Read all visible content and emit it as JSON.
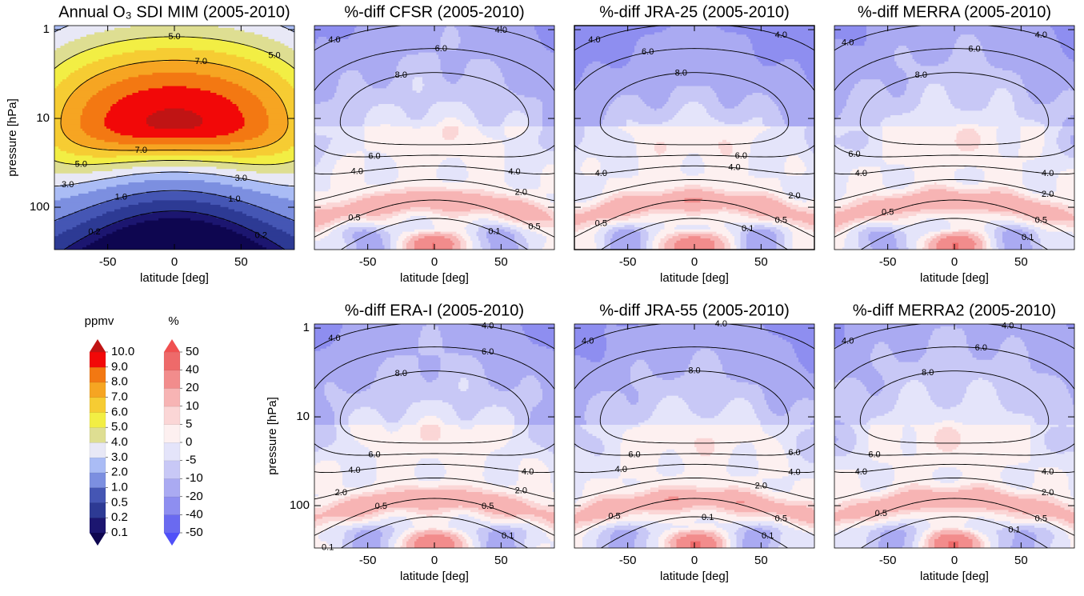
{
  "chart_data": [
    {
      "type": "contour",
      "field": "ozone",
      "title": "Annual O₃ SDI MIM (2005-2010)",
      "xlabel": "latitude [deg]",
      "ylabel": "pressure [hPa]",
      "xlim": [
        -90,
        90
      ],
      "xticks": [
        -50,
        0,
        50
      ],
      "ylim": [
        300,
        0.9
      ],
      "log_y": true,
      "yticks": [
        1,
        10,
        100
      ],
      "contour_labels": [
        {
          "value": 5,
          "label": "5.0"
        },
        {
          "value": 7,
          "label": "7.0"
        },
        {
          "value": 5,
          "label": "5.0"
        },
        {
          "value": 5,
          "label": "5.0"
        },
        {
          "value": 7,
          "label": "7.0"
        },
        {
          "value": 3,
          "label": "3.0"
        },
        {
          "value": 3,
          "label": "3.0"
        },
        {
          "value": 1,
          "label": "1.0"
        },
        {
          "value": 1,
          "label": "1.0"
        },
        {
          "value": 0.2,
          "label": "0.2"
        },
        {
          "value": 0.2,
          "label": "0.2"
        }
      ]
    },
    {
      "type": "contour",
      "field": "percent-diff",
      "title": "%-diff CFSR (2005-2010)",
      "xlabel": "latitude [deg]",
      "xlim": [
        -90,
        90
      ],
      "xticks": [
        -50,
        0,
        50
      ],
      "ylim": [
        300,
        0.9
      ],
      "log_y": true,
      "yticks": [
        1,
        10,
        100
      ],
      "contour_labels": [
        {
          "value": 4,
          "label": "4.0"
        },
        {
          "value": 4,
          "label": "4.0"
        },
        {
          "value": 6,
          "label": "6.0"
        },
        {
          "value": 8,
          "label": "8.0"
        },
        {
          "value": 6,
          "label": "6.0"
        },
        {
          "value": 4,
          "label": "4.0"
        },
        {
          "value": 4,
          "label": "4.0"
        },
        {
          "value": 2,
          "label": "2.0"
        },
        {
          "value": 0.5,
          "label": "0.5"
        },
        {
          "value": 0.5,
          "label": "0.5"
        },
        {
          "value": 0.1,
          "label": "0.1"
        }
      ]
    },
    {
      "type": "contour",
      "field": "percent-diff",
      "title": "%-diff JRA-25 (2005-2010)",
      "xlabel": "latitude [deg]",
      "xlim": [
        -90,
        90
      ],
      "xticks": [
        -50,
        0,
        50
      ],
      "ylim": [
        300,
        0.9
      ],
      "log_y": true,
      "yticks": [
        1,
        10,
        100
      ],
      "contour_labels": [
        {
          "value": 4,
          "label": "4.0"
        },
        {
          "value": 4,
          "label": "4.0"
        },
        {
          "value": 6,
          "label": "6.0"
        },
        {
          "value": 8,
          "label": "8.0"
        },
        {
          "value": 6,
          "label": "6.0"
        },
        {
          "value": 4,
          "label": "4.0"
        },
        {
          "value": 4,
          "label": "4.0"
        },
        {
          "value": 2,
          "label": "2.0"
        },
        {
          "value": 0.5,
          "label": "0.5"
        },
        {
          "value": 0.5,
          "label": "0.5"
        },
        {
          "value": 0.1,
          "label": "0.1"
        }
      ]
    },
    {
      "type": "contour",
      "field": "percent-diff",
      "title": "%-diff MERRA (2005-2010)",
      "xlabel": "latitude [deg]",
      "xlim": [
        -90,
        90
      ],
      "xticks": [
        -50,
        0,
        50
      ],
      "ylim": [
        300,
        0.9
      ],
      "log_y": true,
      "yticks": [
        1,
        10,
        100
      ],
      "contour_labels": [
        {
          "value": 4,
          "label": "4.0"
        },
        {
          "value": 4,
          "label": "4.0"
        },
        {
          "value": 6,
          "label": "6.0"
        },
        {
          "value": 8,
          "label": "8.0"
        },
        {
          "value": 6,
          "label": "6.0"
        },
        {
          "value": 4,
          "label": "4.0"
        },
        {
          "value": 4,
          "label": "4.0"
        },
        {
          "value": 2,
          "label": "2.0"
        },
        {
          "value": 0.5,
          "label": "0.5"
        },
        {
          "value": 0.5,
          "label": "0.5"
        },
        {
          "value": 0.1,
          "label": "0.1"
        }
      ]
    },
    {
      "type": "contour",
      "field": "percent-diff",
      "title": "%-diff ERA-I (2005-2010)",
      "xlabel": "latitude [deg]",
      "ylabel": "pressure [hPa]",
      "xlim": [
        -90,
        90
      ],
      "xticks": [
        -50,
        0,
        50
      ],
      "ylim": [
        300,
        0.9
      ],
      "log_y": true,
      "yticks": [
        1,
        10,
        100
      ],
      "contour_labels": [
        {
          "value": 4,
          "label": "4.0"
        },
        {
          "value": 4,
          "label": "4.0"
        },
        {
          "value": 6,
          "label": "6.0"
        },
        {
          "value": 8,
          "label": "8.0"
        },
        {
          "value": 6,
          "label": "6.0"
        },
        {
          "value": 4,
          "label": "4.0"
        },
        {
          "value": 4,
          "label": "4.0"
        },
        {
          "value": 2,
          "label": "2.0"
        },
        {
          "value": 2,
          "label": "2.0"
        },
        {
          "value": 0.5,
          "label": "0.5"
        },
        {
          "value": 0.5,
          "label": "0.5"
        },
        {
          "value": 0.1,
          "label": "0.1"
        },
        {
          "value": 0.1,
          "label": "0.1"
        }
      ]
    },
    {
      "type": "contour",
      "field": "percent-diff",
      "title": "%-diff JRA-55 (2005-2010)",
      "xlabel": "latitude [deg]",
      "xlim": [
        -90,
        90
      ],
      "xticks": [
        -50,
        0,
        50
      ],
      "ylim": [
        300,
        0.9
      ],
      "log_y": true,
      "yticks": [
        1,
        10,
        100
      ],
      "contour_labels": [
        {
          "value": 4,
          "label": "4.0"
        },
        {
          "value": 4,
          "label": "4.0"
        },
        {
          "value": 6,
          "label": "6.0"
        },
        {
          "value": 6,
          "label": "6.0"
        },
        {
          "value": 8,
          "label": "8.0"
        },
        {
          "value": 4,
          "label": "4.0"
        },
        {
          "value": 4,
          "label": "4.0"
        },
        {
          "value": 2,
          "label": "2.0"
        },
        {
          "value": 0.5,
          "label": "0.5"
        },
        {
          "value": 0.5,
          "label": "0.5"
        },
        {
          "value": 0.1,
          "label": "0.1"
        },
        {
          "value": 0.1,
          "label": "0.1"
        }
      ]
    },
    {
      "type": "contour",
      "field": "percent-diff",
      "title": "%-diff MERRA2 (2005-2010)",
      "xlabel": "latitude [deg]",
      "xlim": [
        -90,
        90
      ],
      "xticks": [
        -50,
        0,
        50
      ],
      "ylim": [
        300,
        0.9
      ],
      "log_y": true,
      "yticks": [
        1,
        10,
        100
      ],
      "contour_labels": [
        {
          "value": 4,
          "label": "4.0"
        },
        {
          "value": 4,
          "label": "4.0"
        },
        {
          "value": 6,
          "label": "6.0"
        },
        {
          "value": 8,
          "label": "8.0"
        },
        {
          "value": 6,
          "label": "6.0"
        },
        {
          "value": 4,
          "label": "4.0"
        },
        {
          "value": 4,
          "label": "4.0"
        },
        {
          "value": 2,
          "label": "2.0"
        },
        {
          "value": 0.5,
          "label": "0.5"
        },
        {
          "value": 0.5,
          "label": "0.5"
        },
        {
          "value": 0.1,
          "label": "0.1"
        }
      ]
    }
  ],
  "colorbars": [
    {
      "field": "ozone",
      "unit": "ppmv",
      "ticks": [
        0.1,
        0.2,
        0.5,
        {
          "value": 1,
          "label": "1.0"
        },
        {
          "value": 2,
          "label": "2.0"
        },
        {
          "value": 3,
          "label": "3.0"
        },
        {
          "value": 4,
          "label": "4.0"
        },
        {
          "value": 5,
          "label": "5.0"
        },
        {
          "value": 6,
          "label": "6.0"
        },
        {
          "value": 7,
          "label": "7.0"
        },
        {
          "value": 8,
          "label": "8.0"
        },
        {
          "value": 9,
          "label": "9.0"
        },
        {
          "value": 10,
          "label": "10.0"
        }
      ],
      "colors": [
        "#1c1670",
        "#2d3a94",
        "#4556b4",
        "#7c8fe0",
        "#aabcf5",
        "#e8e8f6",
        "#dede92",
        "#f2ee44",
        "#f6cc33",
        "#f6a522",
        "#f37812",
        "#f20808"
      ],
      "under_color": "#0e0650",
      "over_color": "#c01414"
    },
    {
      "field": "percent-diff",
      "unit": "%",
      "ticks": [
        -50,
        -40,
        -20,
        -10,
        -5,
        0,
        5,
        10,
        20,
        40,
        50
      ],
      "colors": [
        "#6a6af0",
        "#8e8ef0",
        "#aaaaf2",
        "#c8c8f6",
        "#e4e4fa",
        "#fdf0f0",
        "#fbd6d6",
        "#f7b4b4",
        "#f28c8c",
        "#ee6a6a"
      ],
      "under_color": "#5050f8",
      "over_color": "#f05050"
    }
  ]
}
